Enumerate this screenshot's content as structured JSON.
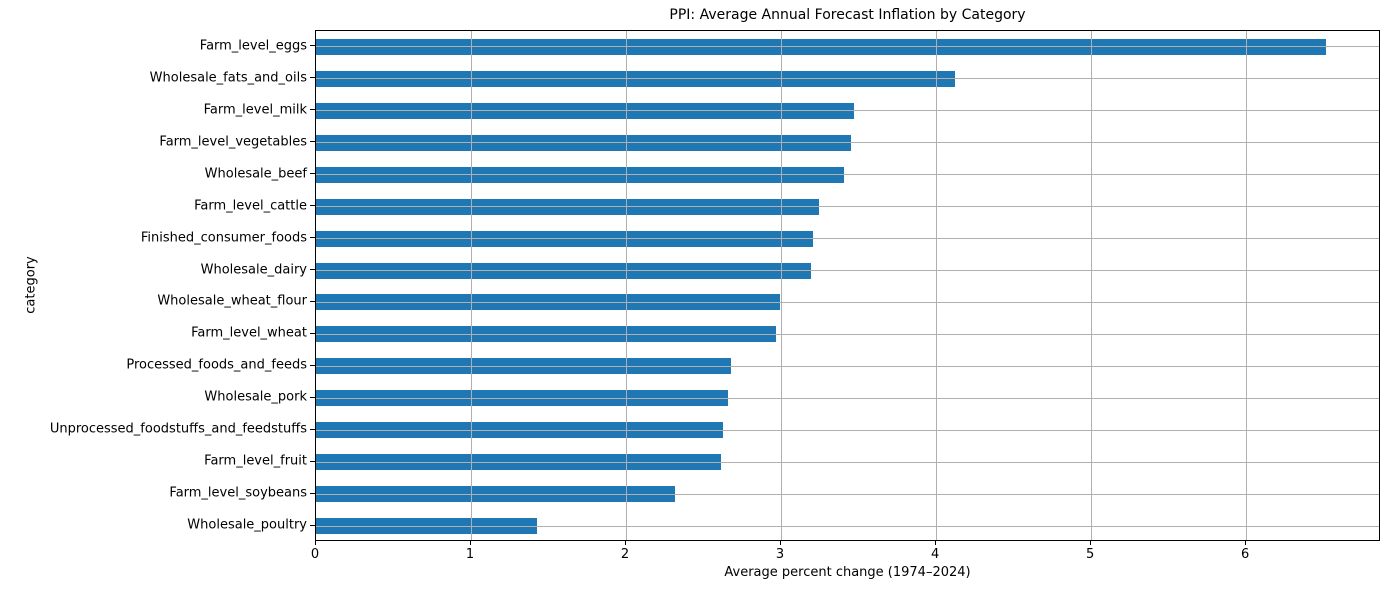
{
  "figure": {
    "background": "#ffffff"
  },
  "chart_data": {
    "type": "bar",
    "orientation": "horizontal",
    "title": "PPI: Average Annual Forecast Inflation by Category",
    "xlabel": "Average percent change (1974–2024)",
    "ylabel": "category",
    "categories": [
      "Farm_level_eggs",
      "Wholesale_fats_and_oils",
      "Farm_level_milk",
      "Farm_level_vegetables",
      "Wholesale_beef",
      "Farm_level_cattle",
      "Finished_consumer_foods",
      "Wholesale_dairy",
      "Wholesale_wheat_flour",
      "Farm_level_wheat",
      "Processed_foods_and_feeds",
      "Wholesale_pork",
      "Unprocessed_foodstuffs_and_feedstuffs",
      "Farm_level_fruit",
      "Farm_level_soybeans",
      "Wholesale_poultry"
    ],
    "values": [
      6.53,
      4.13,
      3.48,
      3.46,
      3.41,
      3.25,
      3.21,
      3.2,
      3.0,
      2.97,
      2.68,
      2.66,
      2.63,
      2.62,
      2.32,
      1.43
    ],
    "xlim": [
      0,
      6.87
    ],
    "xticks": [
      0,
      1,
      2,
      3,
      4,
      5,
      6
    ],
    "grid": true,
    "grid_on_top_of_bars": true,
    "grid_color": "#b0b0b0",
    "bar_color": "#1f77b4",
    "legend_position": "none"
  }
}
